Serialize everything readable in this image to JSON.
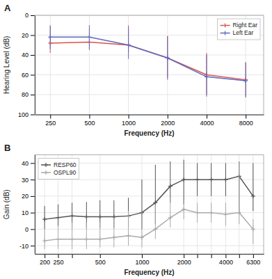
{
  "chart_data": [
    {
      "type": "line",
      "title": "A",
      "x_label": "Frequency (Hz)",
      "y_label": "Hearing Level (dB)",
      "x": [
        250,
        500,
        1000,
        2000,
        4000,
        8000
      ],
      "series": [
        {
          "name": "Right Ear",
          "color": "#d9534f",
          "marker": "plus",
          "line_style": "solid",
          "values": [
            28,
            27,
            30,
            43,
            60,
            65
          ],
          "error_low": [
            17,
            14,
            20,
            22,
            22,
            18
          ],
          "error_high": [
            10,
            8,
            8,
            20,
            20,
            18
          ]
        },
        {
          "name": "Left Ear",
          "color": "#5b6abf",
          "marker": "plus",
          "line_style": "solid",
          "values": [
            22,
            22,
            30,
            43,
            62,
            66
          ],
          "error_low": [
            12,
            12,
            18,
            22,
            22,
            18
          ],
          "error_high": [
            12,
            12,
            14,
            22,
            20,
            16
          ]
        }
      ],
      "log": "x",
      "xlim": [
        190,
        11000
      ],
      "xticks": [
        250,
        500,
        1000,
        2000,
        4000,
        8000
      ],
      "ylim": [
        100,
        0
      ],
      "yticks": [
        0,
        20,
        40,
        60,
        80,
        100
      ],
      "grid": true,
      "legend": "upper right"
    },
    {
      "type": "line",
      "title": "B",
      "x_label": "Frequency (Hz)",
      "y_label": "Gain (dB)",
      "x": [
        200,
        250,
        315,
        400,
        500,
        630,
        800,
        1000,
        1250,
        1600,
        2000,
        2500,
        3150,
        4000,
        5000,
        6300
      ],
      "series": [
        {
          "name": "RESP60",
          "color": "#555555",
          "marker": "plus",
          "line_style": "solid",
          "values": [
            6,
            7,
            8,
            7.5,
            7.5,
            7.5,
            8,
            10,
            16,
            26,
            30,
            30,
            30,
            30,
            32,
            20
          ],
          "error_low": [
            6,
            6,
            8,
            7,
            7,
            7,
            7,
            10,
            13,
            10,
            15,
            10,
            10,
            10,
            22,
            9
          ],
          "error_high": [
            8,
            8,
            8,
            9,
            10,
            10,
            11,
            20,
            23,
            15,
            12,
            10,
            10,
            10,
            9,
            20
          ]
        },
        {
          "name": "OSPL90",
          "color": "#aaaaaa",
          "marker": "plus",
          "line_style": "solid",
          "values": [
            -7,
            -6,
            -6,
            -6,
            -6,
            -5,
            -4,
            -5,
            0,
            7,
            12,
            10,
            10,
            9,
            10,
            0
          ],
          "error_low": [
            5,
            6,
            6,
            6,
            5,
            6,
            6,
            6,
            6,
            6,
            6,
            6,
            6,
            7,
            7,
            9
          ],
          "error_high": [
            8,
            8,
            10,
            10,
            10,
            12,
            15,
            29,
            15,
            12,
            6,
            6,
            6,
            7,
            31,
            6
          ]
        }
      ],
      "log": "x",
      "xlim": [
        170,
        7500
      ],
      "xticks": [
        200,
        250,
        {
          "value": 315,
          "label": null
        },
        500,
        1000,
        2000,
        {
          "value": 2500,
          "label": null
        },
        {
          "value": 3150,
          "label": null
        },
        4000,
        {
          "value": 5000,
          "label": null
        },
        6300
      ],
      "ylim": [
        -15,
        45
      ],
      "yticks": [
        -10,
        0,
        10,
        20,
        30,
        40
      ],
      "grid": true,
      "legend": "upper left"
    }
  ]
}
